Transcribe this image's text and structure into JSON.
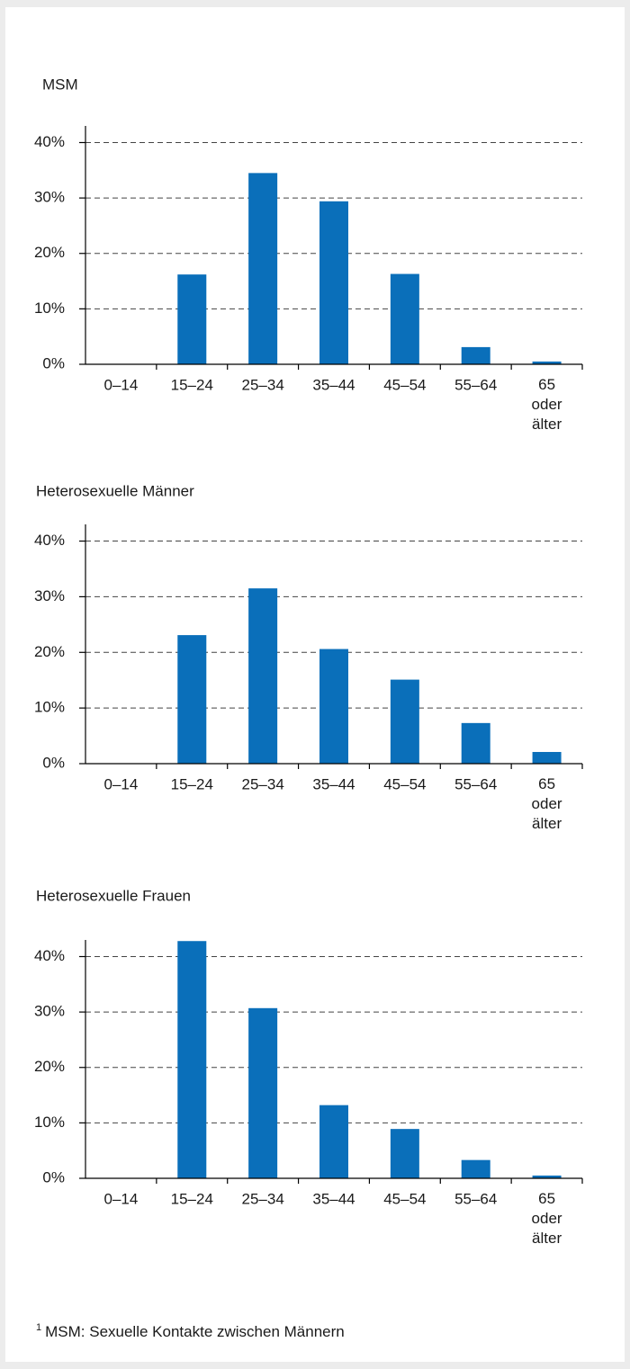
{
  "chart_data": [
    {
      "type": "bar",
      "title": "MSM",
      "categories": [
        "0–14",
        "15–24",
        "25–34",
        "35–44",
        "45–54",
        "55–64",
        "65 oder älter"
      ],
      "values": [
        0,
        16.2,
        34.5,
        29.4,
        16.3,
        3.1,
        0.5
      ],
      "color": "#0a6fba",
      "ylim": [
        0,
        43
      ],
      "yticks": [
        {
          "value": 0,
          "label": "0%"
        },
        {
          "value": 10,
          "label": "10%"
        },
        {
          "value": 20,
          "label": "20%"
        },
        {
          "value": 30,
          "label": "30%"
        },
        {
          "value": 40,
          "label": "40%"
        }
      ],
      "grid": true
    },
    {
      "type": "bar",
      "title": "Heterosexuelle Männer",
      "categories": [
        "0–14",
        "15–24",
        "25–34",
        "35–44",
        "45–54",
        "55–64",
        "65 oder älter"
      ],
      "values": [
        0,
        23.1,
        31.5,
        20.6,
        15.1,
        7.3,
        2.1
      ],
      "color": "#0a6fba",
      "ylim": [
        0,
        43
      ],
      "yticks": [
        {
          "value": 0,
          "label": "0%"
        },
        {
          "value": 10,
          "label": "10%"
        },
        {
          "value": 20,
          "label": "20%"
        },
        {
          "value": 30,
          "label": "30%"
        },
        {
          "value": 40,
          "label": "40%"
        }
      ],
      "grid": true
    },
    {
      "type": "bar",
      "title": "Heterosexuelle Frauen",
      "categories": [
        "0–14",
        "15–24",
        "25–34",
        "35–44",
        "45–54",
        "55–64",
        "65 oder älter"
      ],
      "values": [
        0,
        42.8,
        30.7,
        13.2,
        8.9,
        3.3,
        0.5
      ],
      "color": "#0a6fba",
      "ylim": [
        0,
        43
      ],
      "yticks": [
        {
          "value": 0,
          "label": "0%"
        },
        {
          "value": 10,
          "label": "10%"
        },
        {
          "value": 20,
          "label": "20%"
        },
        {
          "value": 30,
          "label": "30%"
        },
        {
          "value": 40,
          "label": "40%"
        }
      ],
      "grid": true
    }
  ],
  "footnote": {
    "marker": "1",
    "text": "MSM: Sexuelle Kontakte zwischen Männern"
  }
}
